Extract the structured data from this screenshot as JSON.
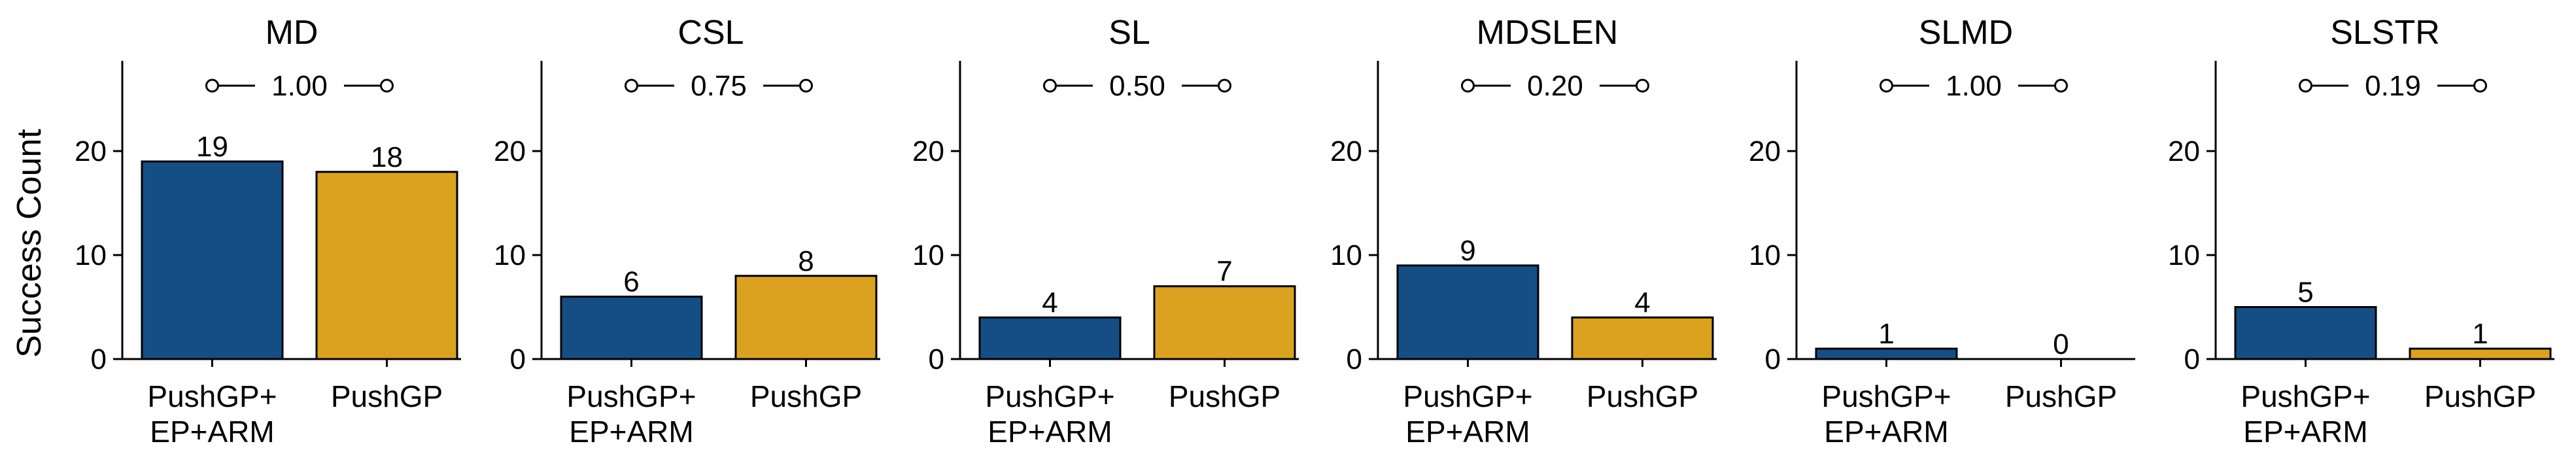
{
  "chart_data": {
    "type": "bar",
    "ylabel": "Success Count",
    "ylim": [
      0,
      29
    ],
    "yticks": [
      0,
      10,
      20
    ],
    "categories": [
      "PushGP+\nEP+ARM",
      "PushGP"
    ],
    "category_lines": [
      [
        "PushGP+",
        "EP+ARM"
      ],
      [
        "PushGP"
      ]
    ],
    "colors": [
      "#154e85",
      "#dba21f"
    ],
    "panels": [
      {
        "title": "MD",
        "values": [
          19,
          18
        ],
        "p_value": "1.00"
      },
      {
        "title": "CSL",
        "values": [
          6,
          8
        ],
        "p_value": "0.75"
      },
      {
        "title": "SL",
        "values": [
          4,
          7
        ],
        "p_value": "0.50"
      },
      {
        "title": "MDSLEN",
        "values": [
          9,
          4
        ],
        "p_value": "0.20"
      },
      {
        "title": "SLMD",
        "values": [
          1,
          0
        ],
        "p_value": "1.00"
      },
      {
        "title": "SLSTR",
        "values": [
          5,
          1
        ],
        "p_value": "0.19"
      }
    ]
  }
}
